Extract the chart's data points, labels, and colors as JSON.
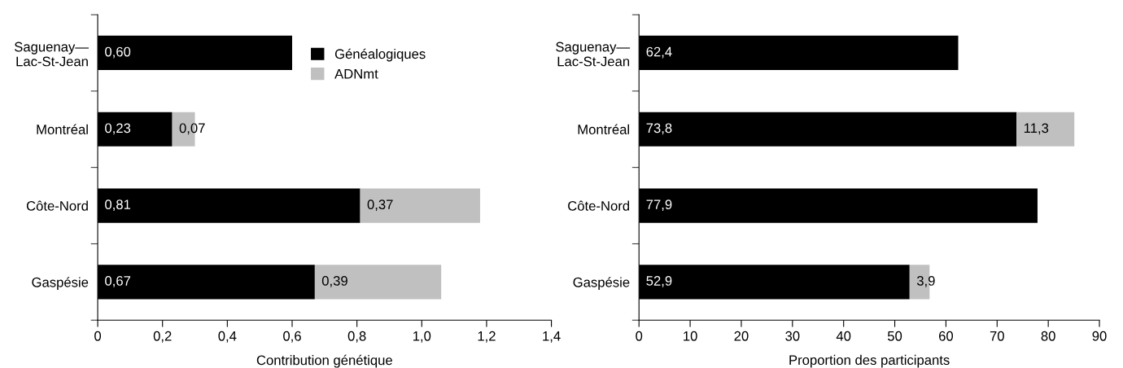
{
  "chart_data": [
    {
      "type": "bar",
      "orientation": "horizontal",
      "stacked": true,
      "xlabel": "Contribution génétique",
      "categories": [
        "Saguenay—\nLac-St-Jean",
        "Montréal",
        "Côte-Nord",
        "Gaspésie"
      ],
      "series": [
        {
          "name": "Généalogiques",
          "color": "#000000",
          "values": [
            0.6,
            0.23,
            0.81,
            0.67
          ],
          "value_labels": [
            "0,60",
            "0,23",
            "0,81",
            "0,67"
          ]
        },
        {
          "name": "ADNmt",
          "color": "#c0c0c0",
          "values": [
            null,
            0.07,
            0.37,
            0.39
          ],
          "value_labels": [
            null,
            "0,07",
            "0,37",
            "0,39"
          ]
        }
      ],
      "xlim": [
        0,
        1.4
      ],
      "xticks": [
        0,
        {
          "value": 0.2,
          "label": "0,2"
        },
        {
          "value": 0.4,
          "label": "0,4"
        },
        {
          "value": 0.6,
          "label": "0,6"
        },
        {
          "value": 0.8,
          "label": "0,8"
        },
        {
          "value": 1.0,
          "label": "1,0"
        },
        {
          "value": 1.2,
          "label": "1,2"
        },
        {
          "value": 1.4,
          "label": "1,4"
        }
      ],
      "legend": "top right",
      "grid": false
    },
    {
      "type": "bar",
      "orientation": "horizontal",
      "stacked": true,
      "xlabel": "Proportion des participants",
      "categories": [
        "Saguenay—\nLac-St-Jean",
        "Montréal",
        "Côte-Nord",
        "Gaspésie"
      ],
      "series": [
        {
          "color": "#000000",
          "values": [
            62.4,
            73.8,
            77.9,
            52.9
          ],
          "value_labels": [
            "62,4",
            "73,8",
            "77,9",
            "52,9"
          ]
        },
        {
          "color": "#c0c0c0",
          "values": [
            null,
            11.3,
            null,
            3.9
          ],
          "value_labels": [
            null,
            "11,3",
            null,
            "3,9"
          ]
        }
      ],
      "xlim": [
        0,
        90
      ],
      "xticks": [
        0,
        10,
        20,
        30,
        40,
        50,
        60,
        70,
        80,
        90
      ],
      "grid": false
    }
  ]
}
